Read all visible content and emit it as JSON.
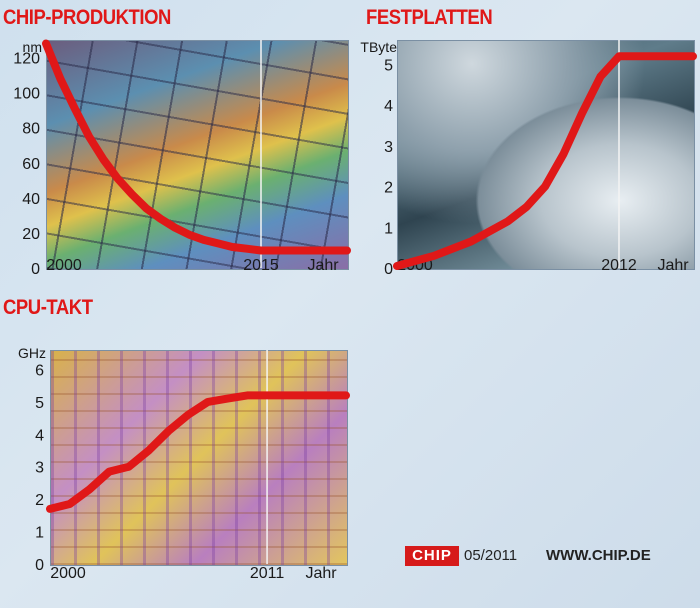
{
  "chart_data": [
    {
      "type": "line",
      "title": "CHIP-PRODUKTION",
      "ylabel": "nm",
      "xlabel": "Jahr",
      "xlim": [
        2000,
        2021
      ],
      "ylim": [
        0,
        130
      ],
      "x_ticks": [
        2000,
        2015
      ],
      "y_ticks": [
        0,
        20,
        40,
        60,
        80,
        100,
        120
      ],
      "reference_x": 2015,
      "series": [
        {
          "color": "#e01818",
          "x": [
            2000,
            2001,
            2002,
            2003,
            2004,
            2005,
            2006,
            2007,
            2008,
            2009,
            2010,
            2011,
            2012,
            2013,
            2014,
            2015,
            2017,
            2019,
            2021
          ],
          "y": [
            128,
            108,
            91,
            75,
            62,
            51,
            42,
            34,
            28,
            23,
            19,
            16,
            14,
            12,
            11,
            10,
            10,
            10,
            10
          ]
        }
      ]
    },
    {
      "type": "line",
      "title": "FESTPLATTEN",
      "ylabel": "TByte",
      "xlabel": "Jahr",
      "xlim": [
        2000,
        2016
      ],
      "ylim": [
        0,
        5.6
      ],
      "x_ticks": [
        2000,
        2012
      ],
      "y_ticks": [
        0,
        1,
        2,
        3,
        4,
        5
      ],
      "reference_x": 2012,
      "series": [
        {
          "color": "#e01818",
          "x": [
            2000,
            2002,
            2004,
            2006,
            2007,
            2008,
            2009,
            2010,
            2011,
            2012,
            2014,
            2016
          ],
          "y": [
            0.05,
            0.3,
            0.65,
            1.15,
            1.5,
            2.0,
            2.8,
            3.8,
            4.7,
            5.2,
            5.2,
            5.2
          ]
        }
      ]
    },
    {
      "type": "line",
      "title": "CPU-TAKT",
      "ylabel": "GHz",
      "xlabel": "Jahr",
      "xlim": [
        2000,
        2015
      ],
      "ylim": [
        0,
        6.6
      ],
      "x_ticks": [
        2000,
        2011
      ],
      "y_ticks": [
        0,
        1,
        2,
        3,
        4,
        5,
        6
      ],
      "reference_x": 2011,
      "series": [
        {
          "color": "#e01818",
          "x": [
            2000,
            2001,
            2002,
            2003,
            2004,
            2005,
            2006,
            2007,
            2008,
            2009,
            2010,
            2011,
            2013,
            2015
          ],
          "y": [
            1.7,
            1.85,
            2.3,
            2.85,
            3.0,
            3.5,
            4.1,
            4.6,
            5.0,
            5.1,
            5.2,
            5.2,
            5.2,
            5.2
          ]
        }
      ]
    }
  ],
  "footer": {
    "logo": "CHIP",
    "issue": "05/2011",
    "url": "WWW.CHIP.DE"
  }
}
